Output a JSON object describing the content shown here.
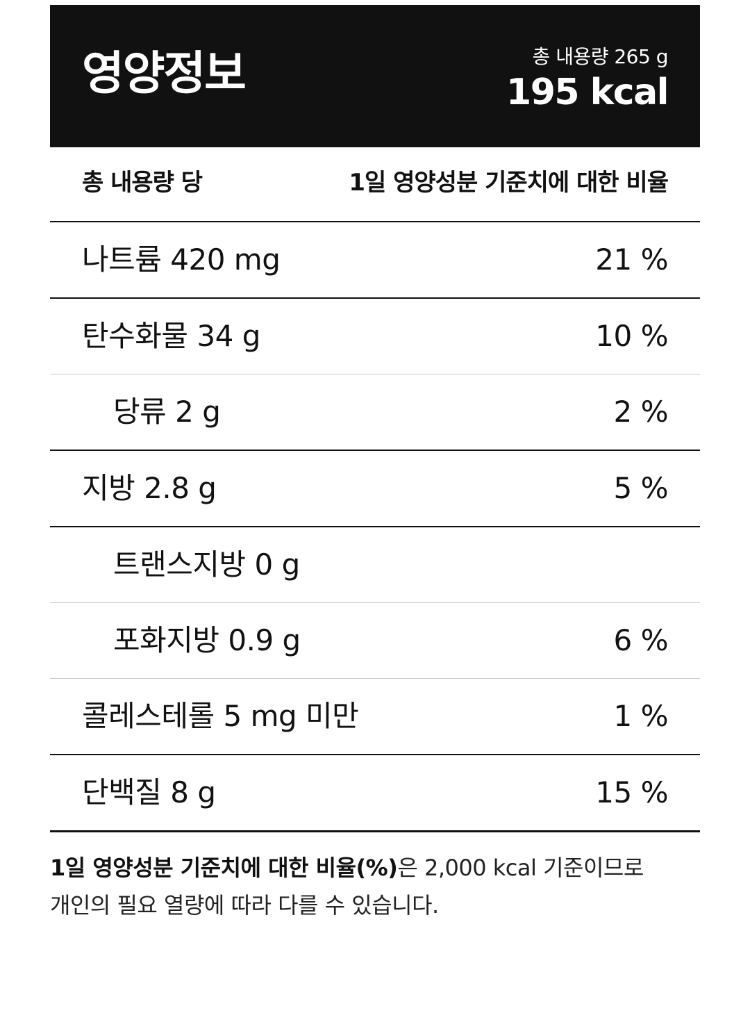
{
  "header": {
    "title": "영양정보",
    "total_amount": "총 내용량 265 g",
    "calories": "195 kcal"
  },
  "columns": {
    "left": "총 내용량 당",
    "right": "1일 영양성분 기준치에 대한 비율"
  },
  "nutrients": {
    "sodium": {
      "name": "나트륨 420 mg",
      "percent": "21 %"
    },
    "carbs": {
      "name": "탄수화물 34 g",
      "percent": "10 %"
    },
    "sugars": {
      "name": "당류 2 g",
      "percent": "2 %"
    },
    "fat": {
      "name": "지방 2.8 g",
      "percent": "5 %"
    },
    "trans_fat": {
      "name": "트랜스지방 0 g",
      "percent": ""
    },
    "saturated_fat": {
      "name": "포화지방 0.9 g",
      "percent": "6 %"
    },
    "cholesterol": {
      "name": "콜레스테롤 5 mg 미만",
      "percent": "1 %"
    },
    "protein": {
      "name": "단백질 8 g",
      "percent": "15 %"
    }
  },
  "footnote": {
    "bold": "1일 영양성분 기준치에 대한 비율(%)",
    "line1_rest": "은 2,000 kcal 기준이므로",
    "line2": "개인의 필요 열량에 따라 다를 수 있습니다."
  }
}
